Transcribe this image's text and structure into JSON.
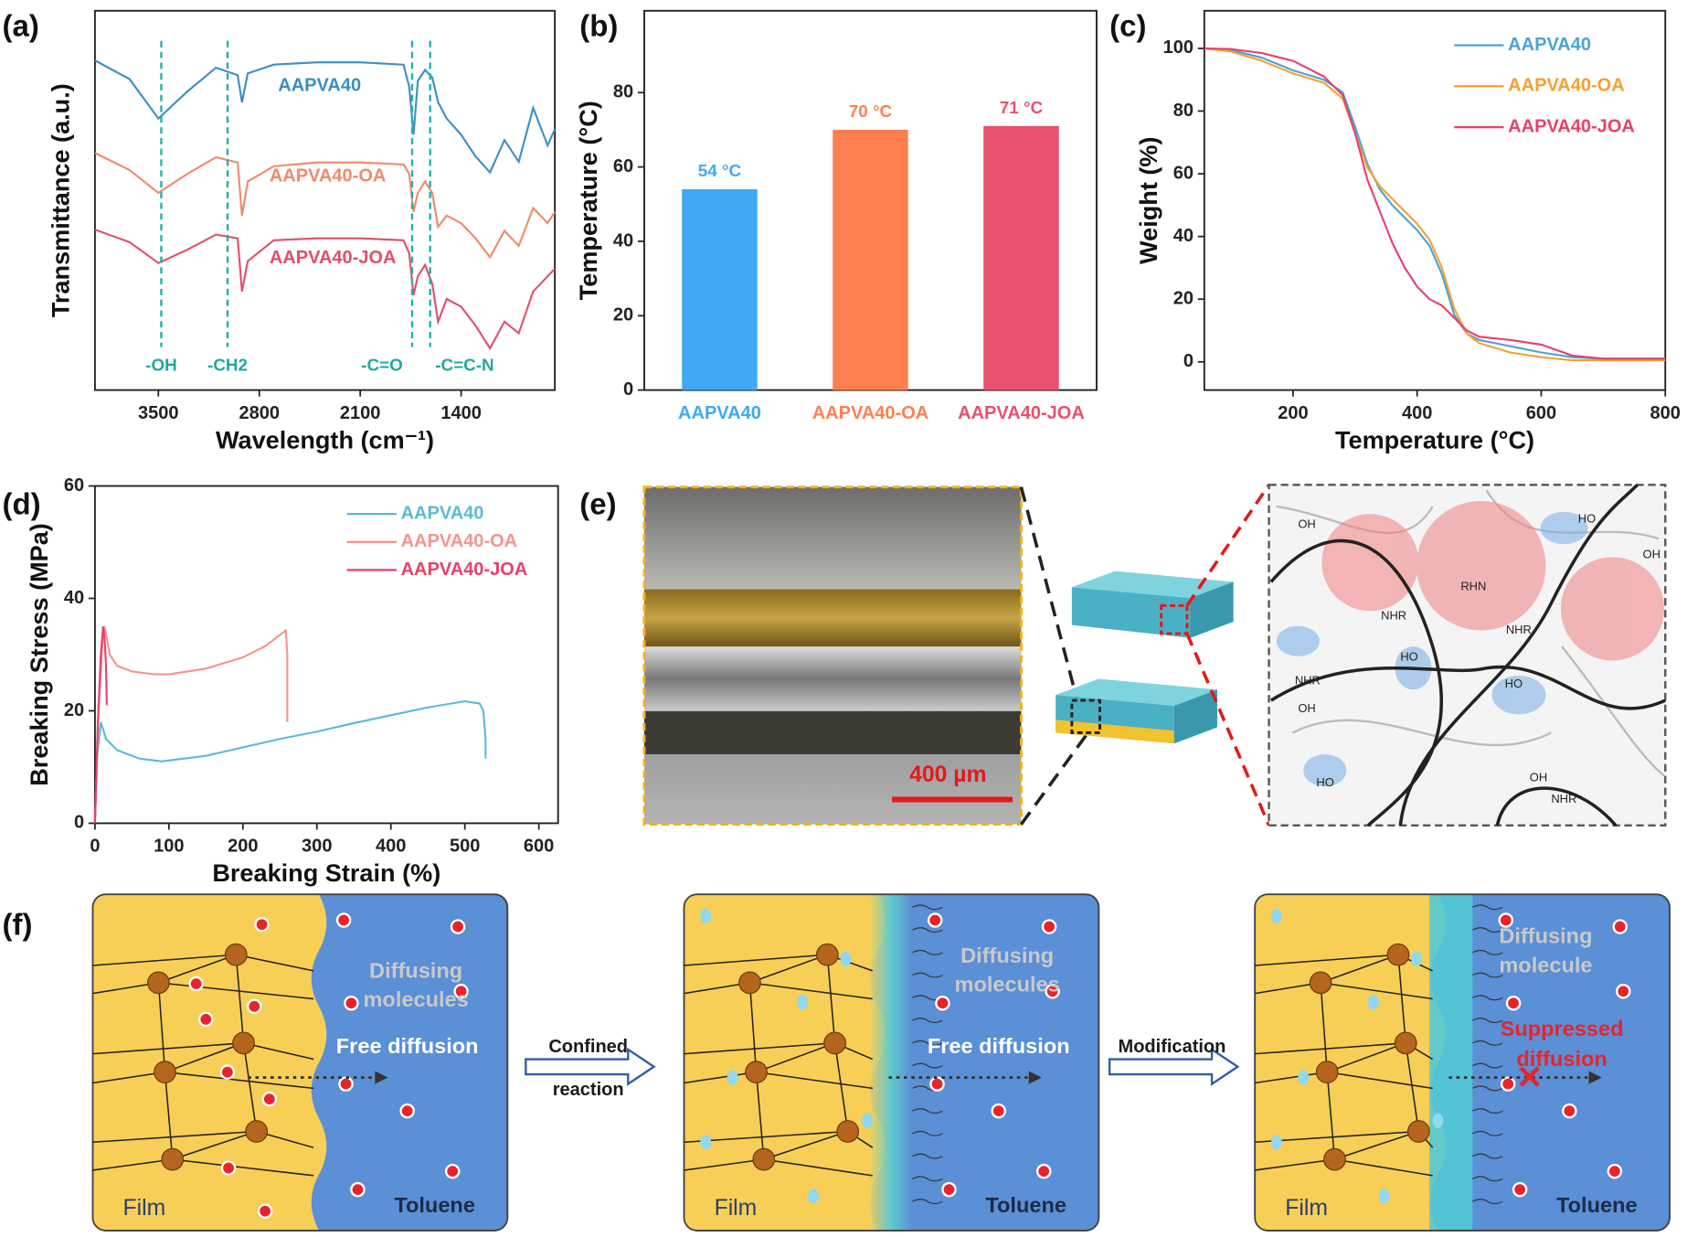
{
  "chart_data": [
    {
      "type": "line",
      "label": "(a)",
      "xlabel": "Wavelength (cm⁻¹)",
      "ylabel": "Transmittance (a.u.)",
      "xlim": [
        3940,
        750
      ],
      "ylim": [
        0,
        100
      ],
      "xticks": [
        3500,
        2800,
        2100,
        1400
      ],
      "x": [
        3940,
        3700,
        3500,
        3300,
        3100,
        2950,
        2920,
        2880,
        2700,
        2400,
        2100,
        1800,
        1760,
        1730,
        1700,
        1650,
        1600,
        1560,
        1500,
        1400,
        1300,
        1200,
        1100,
        1000,
        900,
        800,
        750
      ],
      "series": [
        {
          "name": "AAPVA40",
          "color": "#3b8fc4",
          "values": [
            86.9,
            82,
            71.6,
            78.7,
            85,
            83,
            75.9,
            83.5,
            85.8,
            86.4,
            86.4,
            85.8,
            80,
            67.3,
            81.5,
            84.4,
            82.4,
            75.9,
            71.6,
            67.3,
            61.6,
            57.4,
            65.9,
            60.2,
            74.4,
            64.5,
            68.8
          ]
        },
        {
          "name": "AAPVA40-OA",
          "color": "#f08a6a",
          "values": [
            62.5,
            58,
            52,
            57,
            61.4,
            60,
            46,
            55,
            59,
            60,
            60,
            59.5,
            57,
            47,
            52,
            55,
            52,
            43,
            46,
            44,
            40,
            35,
            42,
            38,
            48,
            44,
            47
          ]
        },
        {
          "name": "AAPVA40-JOA",
          "color": "#e0506a",
          "values": [
            42.3,
            39,
            33.5,
            37,
            41,
            40,
            26,
            34,
            39.5,
            40,
            40,
            39.5,
            36,
            25,
            30,
            33,
            28,
            18,
            24,
            22,
            17,
            11,
            18,
            15,
            26,
            30,
            32
          ]
        }
      ],
      "annotations": [
        {
          "text": "-OH",
          "x": 3480
        },
        {
          "text": "-CH2",
          "x": 3020
        },
        {
          "text": "-C=O",
          "x": 1740
        },
        {
          "text": "-C=C-N",
          "x": 1615
        }
      ]
    },
    {
      "type": "bar",
      "label": "(b)",
      "ylabel": "Temperature (°C)",
      "ylim": [
        0,
        102
      ],
      "yticks": [
        0,
        20,
        40,
        60,
        80
      ],
      "categories": [
        "AAPVA40",
        "AAPVA40-OA",
        "AAPVA40-JOA"
      ],
      "values": [
        54,
        70,
        71
      ],
      "value_labels": [
        "54 °C",
        "70 °C",
        "71 °C"
      ],
      "colors": [
        "#3fa9f5",
        "#ff7f50",
        "#e8506e"
      ]
    },
    {
      "type": "line",
      "label": "(c)",
      "xlabel": "Temperature (°C)",
      "ylabel": "Weight (%)",
      "xlim": [
        57,
        800
      ],
      "ylim": [
        -9,
        112
      ],
      "xticks": [
        200,
        400,
        600,
        800
      ],
      "yticks": [
        0,
        20,
        40,
        60,
        80,
        100
      ],
      "legend": "upper right",
      "x": [
        57,
        100,
        150,
        200,
        250,
        280,
        300,
        320,
        340,
        360,
        380,
        400,
        420,
        440,
        460,
        480,
        500,
        550,
        600,
        650,
        700,
        800
      ],
      "series": [
        {
          "name": "AAPVA40",
          "color": "#4aa3d8",
          "values": [
            100,
            99.5,
            97,
            93,
            90,
            86,
            75,
            63,
            55,
            50,
            46,
            42,
            37,
            28,
            15,
            9,
            7,
            5,
            3,
            1.5,
            1,
            1
          ]
        },
        {
          "name": "AAPVA40-OA",
          "color": "#f5a030",
          "values": [
            100,
            99,
            96,
            92,
            89,
            84,
            73,
            62,
            56,
            52,
            48,
            44,
            39,
            30,
            17,
            9,
            6,
            3,
            1.5,
            0.5,
            0.5,
            0.5
          ]
        },
        {
          "name": "AAPVA40-JOA",
          "color": "#e8406a",
          "values": [
            100,
            99.8,
            98.5,
            96,
            91,
            85,
            73,
            58,
            48,
            38,
            30,
            24,
            20,
            18,
            14,
            10,
            8,
            7,
            5.5,
            2,
            1,
            1
          ]
        }
      ]
    },
    {
      "type": "line",
      "label": "(d)",
      "xlabel": "Breaking Strain (%)",
      "ylabel": "Breaking Stress (MPa)",
      "xlim": [
        0,
        626
      ],
      "ylim": [
        0,
        60
      ],
      "xticks": [
        0,
        100,
        200,
        300,
        400,
        500,
        600
      ],
      "yticks": [
        0,
        20,
        40,
        60
      ],
      "legend": "upper right",
      "series": [
        {
          "name": "AAPVA40",
          "color": "#5bbad5",
          "x": [
            0,
            3,
            8,
            15,
            30,
            60,
            90,
            150,
            200,
            250,
            300,
            350,
            400,
            450,
            500,
            520,
            525,
            528,
            528
          ],
          "values": [
            0,
            12,
            18,
            15,
            13,
            11.5,
            11,
            12,
            13.5,
            15,
            16.3,
            17.8,
            19.2,
            20.6,
            21.7,
            21.3,
            20,
            15,
            11.5
          ]
        },
        {
          "name": "AAPVA40-OA",
          "color": "#f4948e",
          "x": [
            0,
            5,
            10,
            13,
            16,
            20,
            30,
            50,
            80,
            100,
            150,
            200,
            230,
            250,
            258,
            260,
            260
          ],
          "values": [
            0,
            20,
            32,
            35,
            33,
            30,
            28,
            27,
            26.5,
            26.5,
            27.5,
            29.5,
            31.5,
            33.5,
            34.3,
            30,
            18
          ]
        },
        {
          "name": "AAPVA40-JOA",
          "color": "#e8406a",
          "x": [
            0,
            4,
            8,
            11,
            13,
            15,
            16
          ],
          "values": [
            0,
            18,
            30,
            35,
            33,
            28,
            21
          ]
        }
      ]
    }
  ],
  "panel_e": {
    "label": "(e)",
    "scale_bar": "400 µm",
    "molecule_labels": [
      "OH",
      "HO",
      "OH",
      "NHR",
      "RHN",
      "NHR",
      "HO",
      "OH",
      "NHR",
      "HO",
      "OH",
      "NHR",
      "HO"
    ]
  },
  "panel_f": {
    "label": "(f)",
    "states": [
      {
        "film": "Film",
        "solvent": "Toluene",
        "molecules": [
          "Diffusing",
          "molecules"
        ],
        "diffusion": [
          "Free diffusion"
        ]
      },
      {
        "film": "Film",
        "solvent": "Toluene",
        "molecules": [
          "Diffusing",
          "molecules"
        ],
        "diffusion": [
          "Free diffusion"
        ]
      },
      {
        "film": "Film",
        "solvent": "Toluene",
        "molecules": [
          "Diffusing",
          "molecule"
        ],
        "diffusion": [
          "Suppressed",
          "diffusion"
        ]
      }
    ],
    "steps": [
      [
        "Confined",
        "reaction"
      ],
      [
        "Modification"
      ]
    ]
  }
}
